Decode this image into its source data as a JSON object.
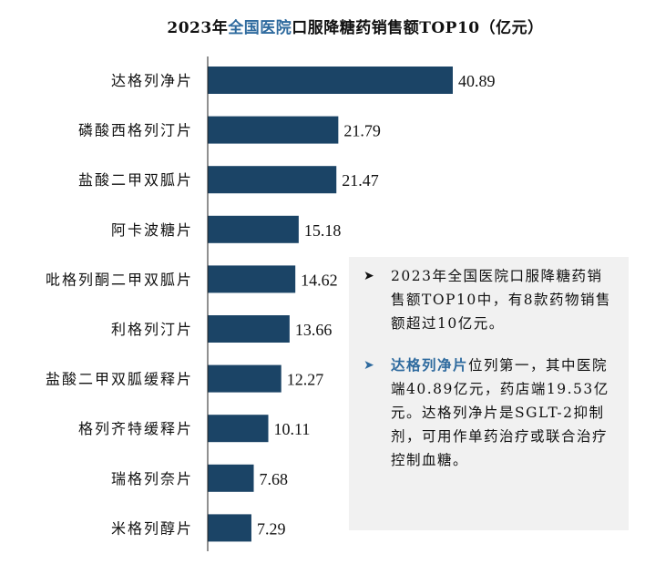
{
  "title": {
    "prefix": "2023年",
    "highlight": "全国医院",
    "suffix": "口服降糖药销售额TOP10（亿元）"
  },
  "chart_data": {
    "type": "bar",
    "orientation": "horizontal",
    "title": "2023年全国医院口服降糖药销售额TOP10（亿元）",
    "categories": [
      "达格列净片",
      "磷酸西格列汀片",
      "盐酸二甲双胍片",
      "阿卡波糖片",
      "吡格列酮二甲双胍片",
      "利格列汀片",
      "盐酸二甲双胍缓释片",
      "格列齐特缓释片",
      "瑞格列奈片",
      "米格列醇片"
    ],
    "values": [
      40.89,
      21.79,
      21.47,
      15.18,
      14.62,
      13.66,
      12.27,
      10.11,
      7.68,
      7.29
    ],
    "value_labels": [
      "40.89",
      "21.79",
      "21.47",
      "15.18",
      "14.62",
      "13.66",
      "12.27",
      "10.11",
      "7.68",
      "7.29"
    ],
    "xlim": [
      0,
      42
    ],
    "bar_color": "#1b4466",
    "grid": false
  },
  "notes": [
    {
      "highlight": "",
      "text": "2023年全国医院口服降糖药销售额TOP10中，有8款药物销售额超过10亿元。"
    },
    {
      "highlight": "达格列净片",
      "text": "位列第一，其中医院端40.89亿元，药店端19.53亿元。达格列净片是SGLT-2抑制剂，可用作单药治疗或联合治疗控制血糖。"
    }
  ],
  "colors": {
    "accent": "#2e6a9e",
    "box_bg": "#f1f1f1"
  }
}
